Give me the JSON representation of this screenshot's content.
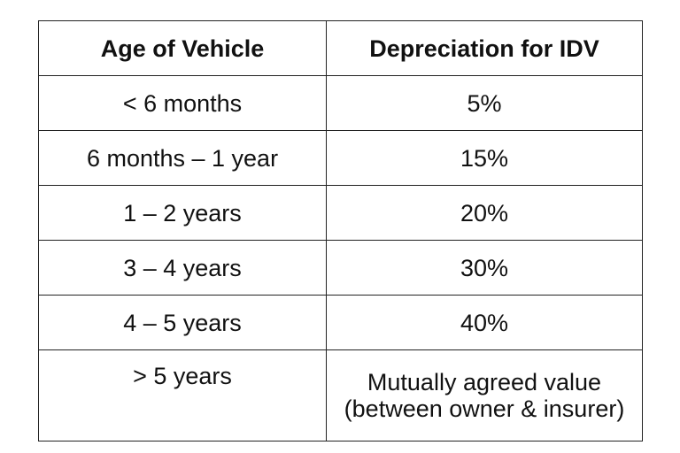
{
  "table": {
    "headers": [
      "Age of Vehicle",
      "Depreciation for IDV"
    ],
    "rows": [
      {
        "age": "< 6 months",
        "depreciation": [
          "5%"
        ]
      },
      {
        "age": "6 months – 1 year",
        "depreciation": [
          "15%"
        ]
      },
      {
        "age": "1 – 2 years",
        "depreciation": [
          "20%"
        ]
      },
      {
        "age": "3 – 4 years",
        "depreciation": [
          "30%"
        ]
      },
      {
        "age": "4 – 5 years",
        "depreciation": [
          "40%"
        ]
      },
      {
        "age": "> 5 years",
        "depreciation": [
          "Mutually agreed value",
          "(between owner & insurer)"
        ]
      }
    ]
  }
}
